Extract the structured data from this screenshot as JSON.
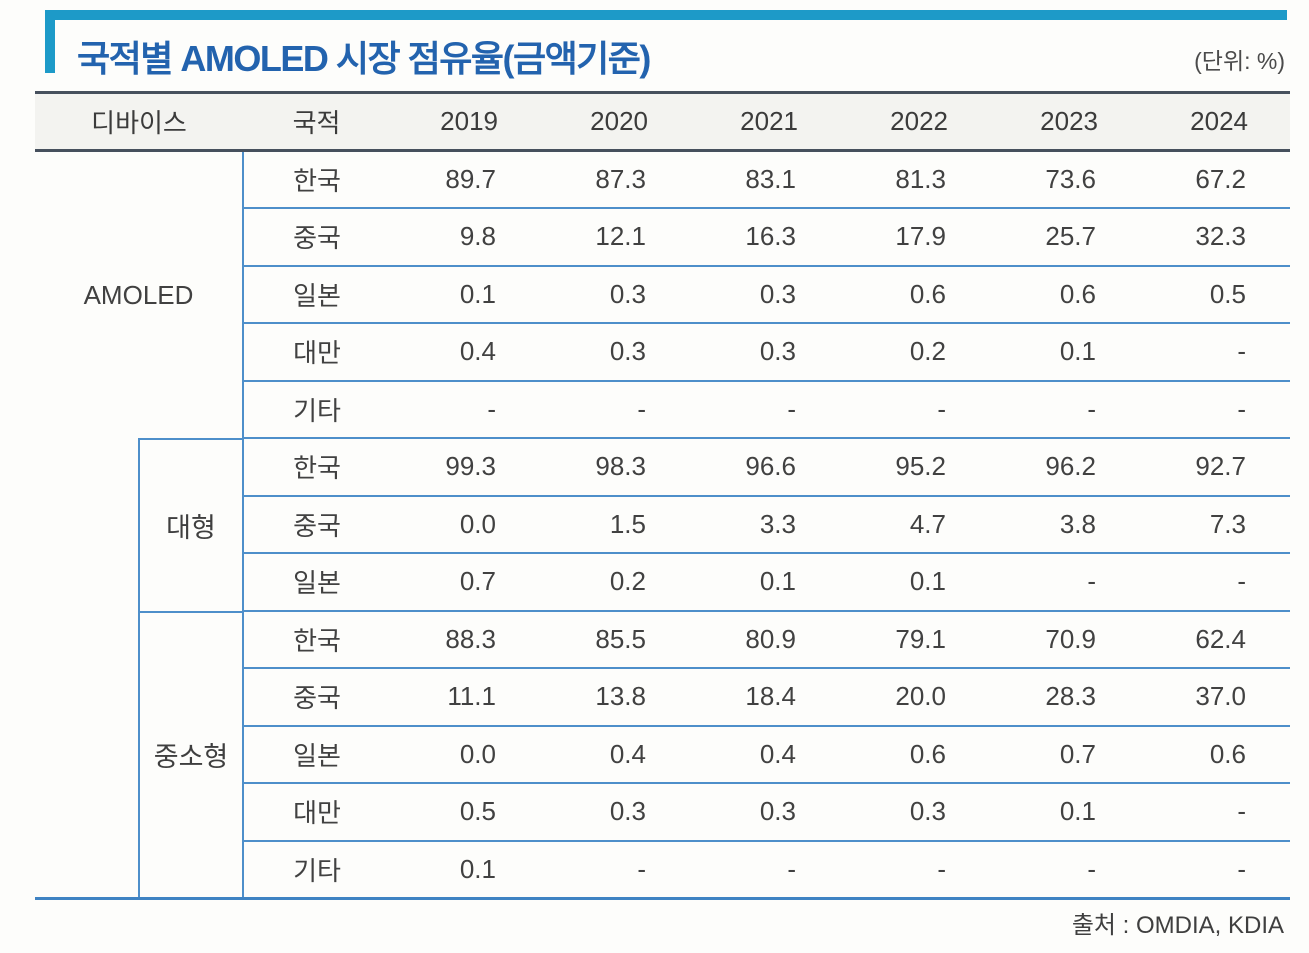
{
  "header": {
    "title": "국적별 AMOLED 시장 점유율(금액기준)",
    "unit": "(단위: %)"
  },
  "footer": {
    "source": "출처 : OMDIA, KDIA"
  },
  "colors": {
    "accent_teal": "#1d9ac8",
    "title_blue": "#2363ae",
    "row_line_blue": "#4e8fca",
    "header_border_dark": "#46505d",
    "table_bottom_blue": "#3f83c3",
    "header_bg": "#f3f3f0",
    "text_dark": "#414141"
  },
  "table": {
    "col_headers": [
      "디바이스",
      "국적",
      "2019",
      "2020",
      "2021",
      "2022",
      "2023",
      "2024"
    ],
    "groups": [
      {
        "device": "AMOLED",
        "rows": [
          {
            "nation": "한국",
            "values": [
              "89.7",
              "87.3",
              "83.1",
              "81.3",
              "73.6",
              "67.2"
            ]
          },
          {
            "nation": "중국",
            "values": [
              "9.8",
              "12.1",
              "16.3",
              "17.9",
              "25.7",
              "32.3"
            ]
          },
          {
            "nation": "일본",
            "values": [
              "0.1",
              "0.3",
              "0.3",
              "0.6",
              "0.6",
              "0.5"
            ]
          },
          {
            "nation": "대만",
            "values": [
              "0.4",
              "0.3",
              "0.3",
              "0.2",
              "0.1",
              "-"
            ]
          },
          {
            "nation": "기타",
            "values": [
              "-",
              "-",
              "-",
              "-",
              "-",
              "-"
            ]
          }
        ]
      },
      {
        "device": "대형",
        "rows": [
          {
            "nation": "한국",
            "values": [
              "99.3",
              "98.3",
              "96.6",
              "95.2",
              "96.2",
              "92.7"
            ]
          },
          {
            "nation": "중국",
            "values": [
              "0.0",
              "1.5",
              "3.3",
              "4.7",
              "3.8",
              "7.3"
            ]
          },
          {
            "nation": "일본",
            "values": [
              "0.7",
              "0.2",
              "0.1",
              "0.1",
              "-",
              "-"
            ]
          }
        ]
      },
      {
        "device": "중소형",
        "rows": [
          {
            "nation": "한국",
            "values": [
              "88.3",
              "85.5",
              "80.9",
              "79.1",
              "70.9",
              "62.4"
            ]
          },
          {
            "nation": "중국",
            "values": [
              "11.1",
              "13.8",
              "18.4",
              "20.0",
              "28.3",
              "37.0"
            ]
          },
          {
            "nation": "일본",
            "values": [
              "0.0",
              "0.4",
              "0.4",
              "0.6",
              "0.7",
              "0.6"
            ]
          },
          {
            "nation": "대만",
            "values": [
              "0.5",
              "0.3",
              "0.3",
              "0.3",
              "0.1",
              "-"
            ]
          },
          {
            "nation": "기타",
            "values": [
              "0.1",
              "-",
              "-",
              "-",
              "-",
              "-"
            ]
          }
        ]
      }
    ]
  }
}
